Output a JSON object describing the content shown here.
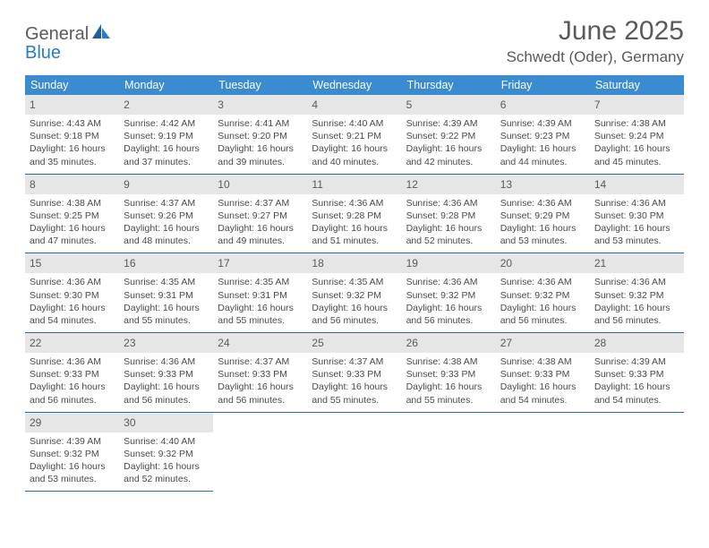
{
  "brand": {
    "word1": "General",
    "word2": "Blue"
  },
  "title": "June 2025",
  "location": "Schwedt (Oder), Germany",
  "colors": {
    "header_bg": "#3a8bd0",
    "daynum_bg": "#e6e6e6",
    "rule": "#2a6aa8",
    "text_primary": "#5a5a5a",
    "text_body": "#4a4a4a",
    "background": "#ffffff",
    "brand_blue": "#2a7cc4"
  },
  "typography": {
    "title_fontsize": 30,
    "location_fontsize": 17,
    "day_header_fontsize": 12.5,
    "daynum_fontsize": 12,
    "body_fontsize": 10.5,
    "logo_fontsize": 20
  },
  "day_headers": [
    "Sunday",
    "Monday",
    "Tuesday",
    "Wednesday",
    "Thursday",
    "Friday",
    "Saturday"
  ],
  "weeks": [
    [
      {
        "n": "1",
        "sr": "Sunrise: 4:43 AM",
        "ss": "Sunset: 9:18 PM",
        "d1": "Daylight: 16 hours",
        "d2": "and 35 minutes."
      },
      {
        "n": "2",
        "sr": "Sunrise: 4:42 AM",
        "ss": "Sunset: 9:19 PM",
        "d1": "Daylight: 16 hours",
        "d2": "and 37 minutes."
      },
      {
        "n": "3",
        "sr": "Sunrise: 4:41 AM",
        "ss": "Sunset: 9:20 PM",
        "d1": "Daylight: 16 hours",
        "d2": "and 39 minutes."
      },
      {
        "n": "4",
        "sr": "Sunrise: 4:40 AM",
        "ss": "Sunset: 9:21 PM",
        "d1": "Daylight: 16 hours",
        "d2": "and 40 minutes."
      },
      {
        "n": "5",
        "sr": "Sunrise: 4:39 AM",
        "ss": "Sunset: 9:22 PM",
        "d1": "Daylight: 16 hours",
        "d2": "and 42 minutes."
      },
      {
        "n": "6",
        "sr": "Sunrise: 4:39 AM",
        "ss": "Sunset: 9:23 PM",
        "d1": "Daylight: 16 hours",
        "d2": "and 44 minutes."
      },
      {
        "n": "7",
        "sr": "Sunrise: 4:38 AM",
        "ss": "Sunset: 9:24 PM",
        "d1": "Daylight: 16 hours",
        "d2": "and 45 minutes."
      }
    ],
    [
      {
        "n": "8",
        "sr": "Sunrise: 4:38 AM",
        "ss": "Sunset: 9:25 PM",
        "d1": "Daylight: 16 hours",
        "d2": "and 47 minutes."
      },
      {
        "n": "9",
        "sr": "Sunrise: 4:37 AM",
        "ss": "Sunset: 9:26 PM",
        "d1": "Daylight: 16 hours",
        "d2": "and 48 minutes."
      },
      {
        "n": "10",
        "sr": "Sunrise: 4:37 AM",
        "ss": "Sunset: 9:27 PM",
        "d1": "Daylight: 16 hours",
        "d2": "and 49 minutes."
      },
      {
        "n": "11",
        "sr": "Sunrise: 4:36 AM",
        "ss": "Sunset: 9:28 PM",
        "d1": "Daylight: 16 hours",
        "d2": "and 51 minutes."
      },
      {
        "n": "12",
        "sr": "Sunrise: 4:36 AM",
        "ss": "Sunset: 9:28 PM",
        "d1": "Daylight: 16 hours",
        "d2": "and 52 minutes."
      },
      {
        "n": "13",
        "sr": "Sunrise: 4:36 AM",
        "ss": "Sunset: 9:29 PM",
        "d1": "Daylight: 16 hours",
        "d2": "and 53 minutes."
      },
      {
        "n": "14",
        "sr": "Sunrise: 4:36 AM",
        "ss": "Sunset: 9:30 PM",
        "d1": "Daylight: 16 hours",
        "d2": "and 53 minutes."
      }
    ],
    [
      {
        "n": "15",
        "sr": "Sunrise: 4:36 AM",
        "ss": "Sunset: 9:30 PM",
        "d1": "Daylight: 16 hours",
        "d2": "and 54 minutes."
      },
      {
        "n": "16",
        "sr": "Sunrise: 4:35 AM",
        "ss": "Sunset: 9:31 PM",
        "d1": "Daylight: 16 hours",
        "d2": "and 55 minutes."
      },
      {
        "n": "17",
        "sr": "Sunrise: 4:35 AM",
        "ss": "Sunset: 9:31 PM",
        "d1": "Daylight: 16 hours",
        "d2": "and 55 minutes."
      },
      {
        "n": "18",
        "sr": "Sunrise: 4:35 AM",
        "ss": "Sunset: 9:32 PM",
        "d1": "Daylight: 16 hours",
        "d2": "and 56 minutes."
      },
      {
        "n": "19",
        "sr": "Sunrise: 4:36 AM",
        "ss": "Sunset: 9:32 PM",
        "d1": "Daylight: 16 hours",
        "d2": "and 56 minutes."
      },
      {
        "n": "20",
        "sr": "Sunrise: 4:36 AM",
        "ss": "Sunset: 9:32 PM",
        "d1": "Daylight: 16 hours",
        "d2": "and 56 minutes."
      },
      {
        "n": "21",
        "sr": "Sunrise: 4:36 AM",
        "ss": "Sunset: 9:32 PM",
        "d1": "Daylight: 16 hours",
        "d2": "and 56 minutes."
      }
    ],
    [
      {
        "n": "22",
        "sr": "Sunrise: 4:36 AM",
        "ss": "Sunset: 9:33 PM",
        "d1": "Daylight: 16 hours",
        "d2": "and 56 minutes."
      },
      {
        "n": "23",
        "sr": "Sunrise: 4:36 AM",
        "ss": "Sunset: 9:33 PM",
        "d1": "Daylight: 16 hours",
        "d2": "and 56 minutes."
      },
      {
        "n": "24",
        "sr": "Sunrise: 4:37 AM",
        "ss": "Sunset: 9:33 PM",
        "d1": "Daylight: 16 hours",
        "d2": "and 56 minutes."
      },
      {
        "n": "25",
        "sr": "Sunrise: 4:37 AM",
        "ss": "Sunset: 9:33 PM",
        "d1": "Daylight: 16 hours",
        "d2": "and 55 minutes."
      },
      {
        "n": "26",
        "sr": "Sunrise: 4:38 AM",
        "ss": "Sunset: 9:33 PM",
        "d1": "Daylight: 16 hours",
        "d2": "and 55 minutes."
      },
      {
        "n": "27",
        "sr": "Sunrise: 4:38 AM",
        "ss": "Sunset: 9:33 PM",
        "d1": "Daylight: 16 hours",
        "d2": "and 54 minutes."
      },
      {
        "n": "28",
        "sr": "Sunrise: 4:39 AM",
        "ss": "Sunset: 9:33 PM",
        "d1": "Daylight: 16 hours",
        "d2": "and 54 minutes."
      }
    ],
    [
      {
        "n": "29",
        "sr": "Sunrise: 4:39 AM",
        "ss": "Sunset: 9:32 PM",
        "d1": "Daylight: 16 hours",
        "d2": "and 53 minutes."
      },
      {
        "n": "30",
        "sr": "Sunrise: 4:40 AM",
        "ss": "Sunset: 9:32 PM",
        "d1": "Daylight: 16 hours",
        "d2": "and 52 minutes."
      },
      null,
      null,
      null,
      null,
      null
    ]
  ]
}
